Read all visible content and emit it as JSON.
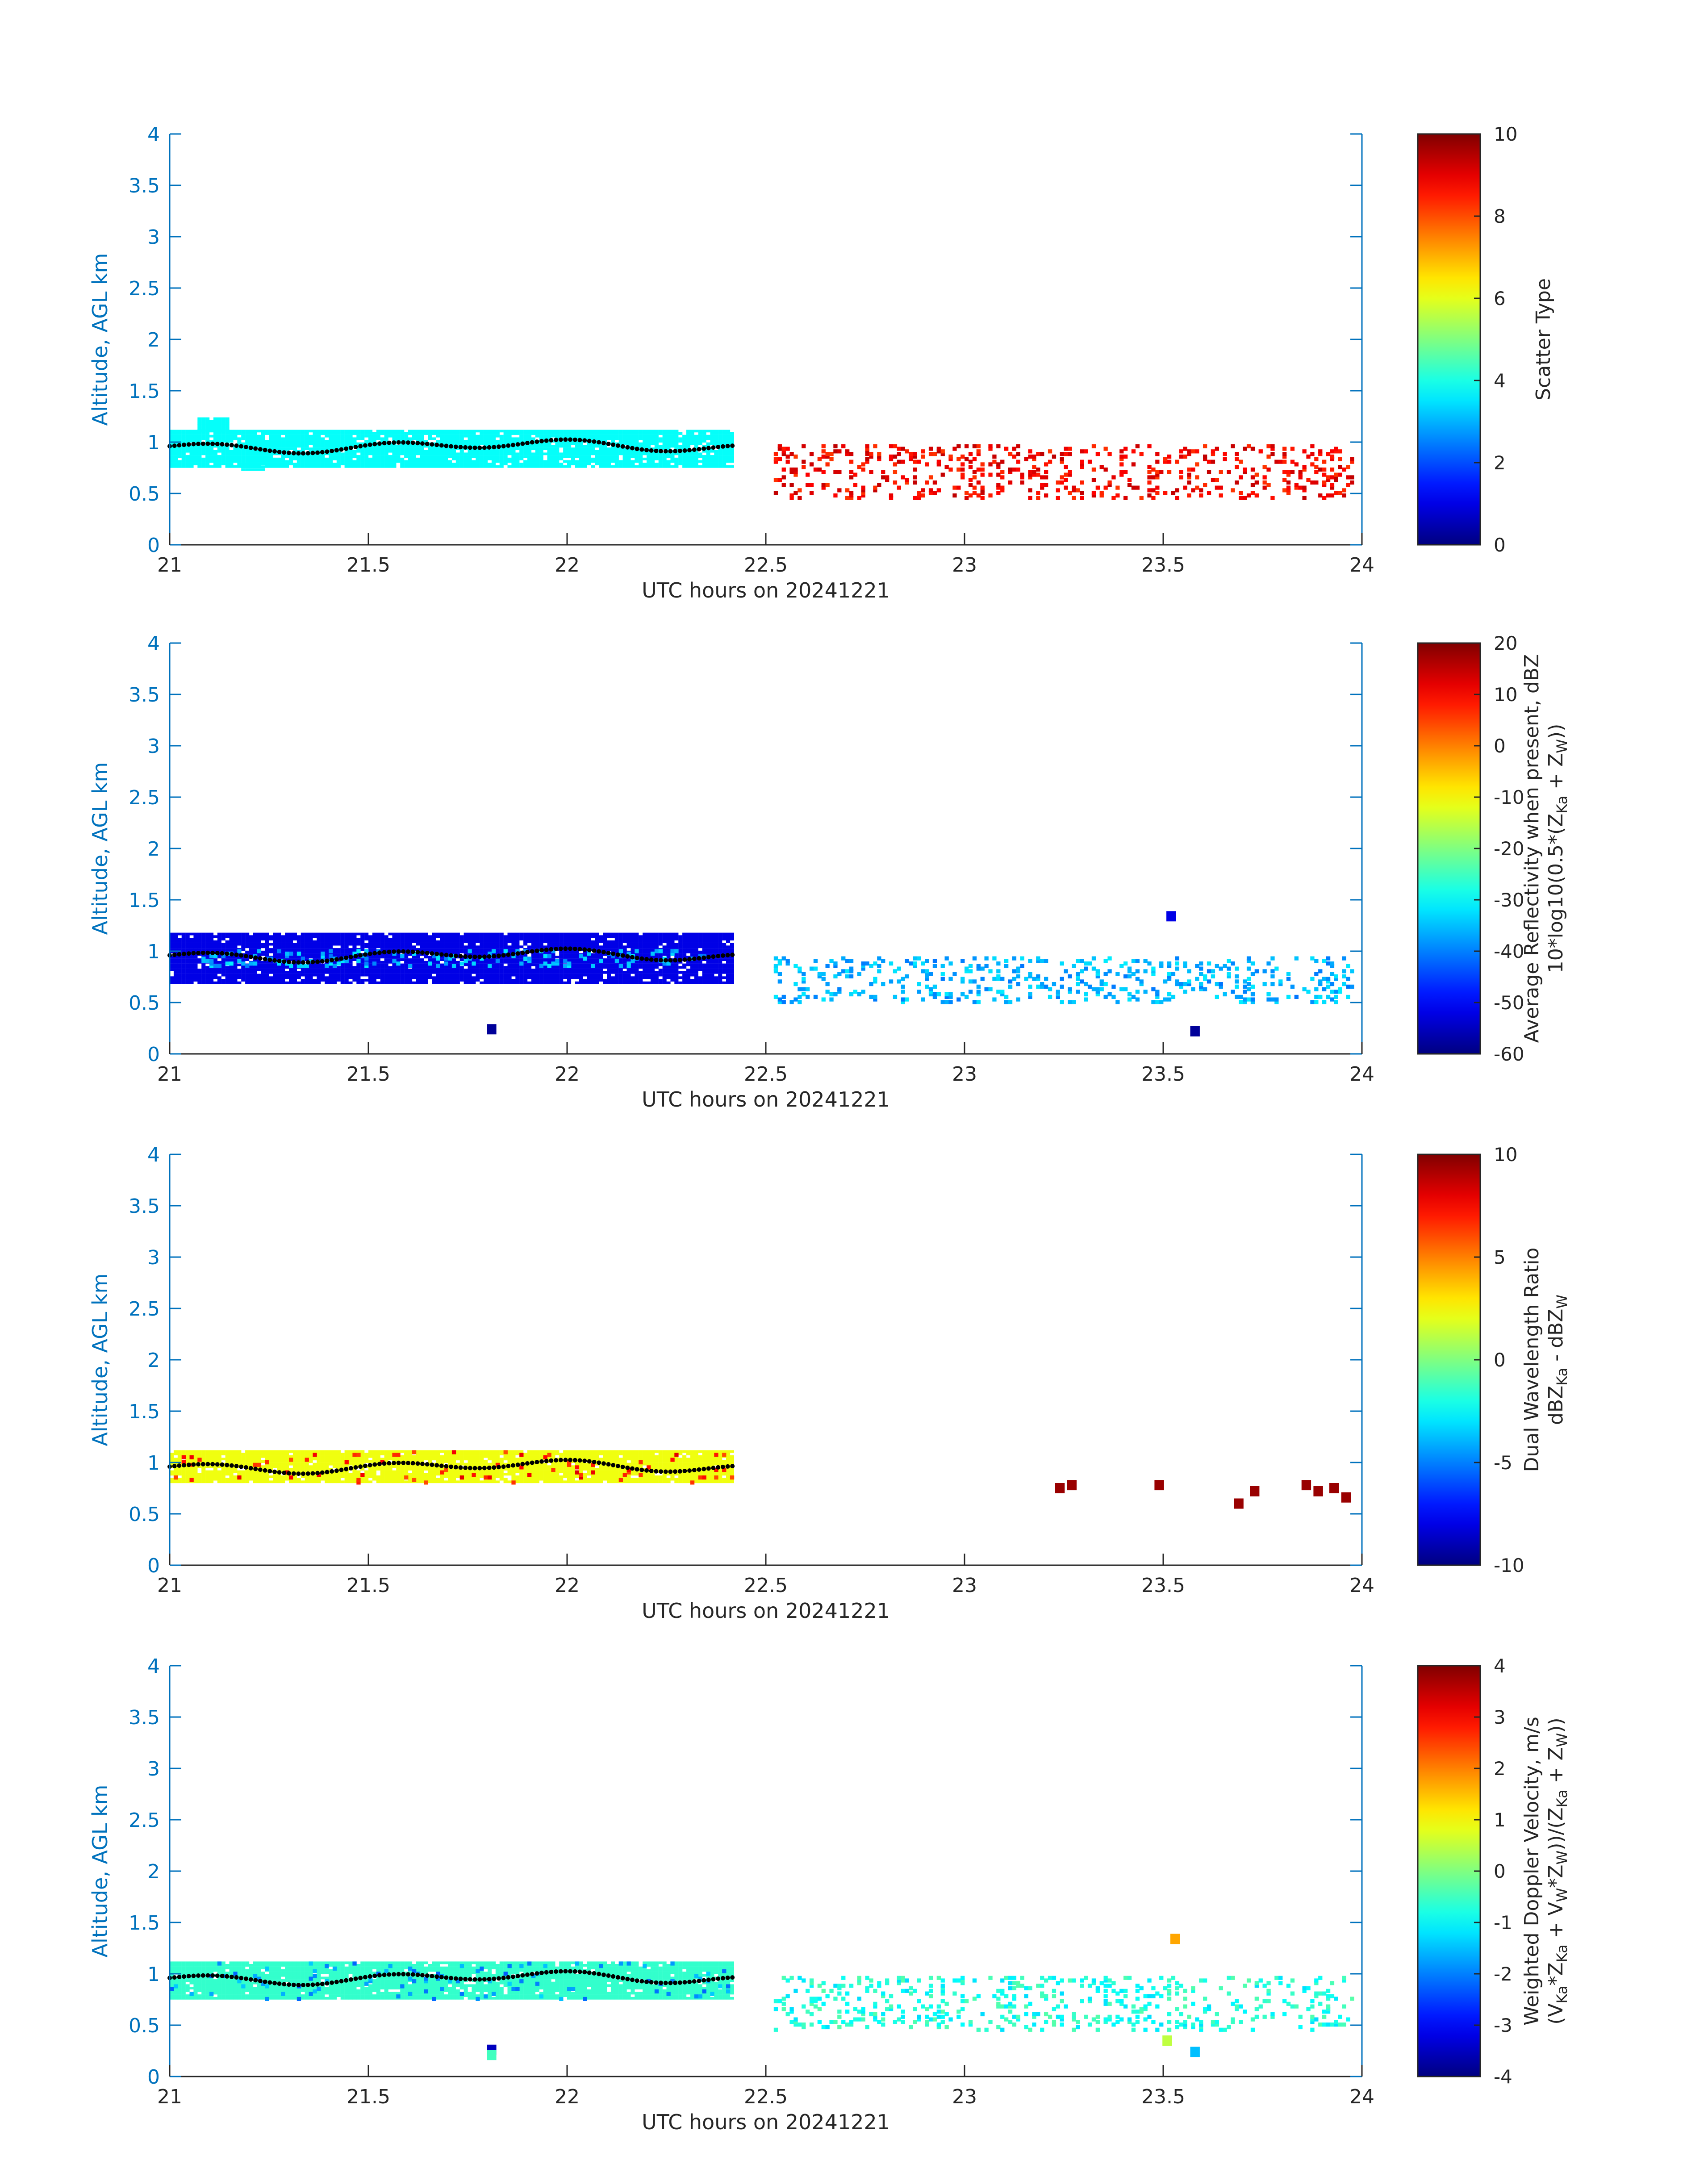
{
  "chart_data": [
    {
      "type": "heatmap",
      "xlabel": "UTC hours on 20241221",
      "ylabel": "Altitude, AGL km",
      "xlim": [
        21,
        24
      ],
      "ylim": [
        0,
        4
      ],
      "xticks": [
        "21",
        "21.5",
        "22",
        "22.5",
        "23",
        "23.5",
        "24"
      ],
      "yticks": [
        "0",
        "0.5",
        "1",
        "1.5",
        "2",
        "2.5",
        "3",
        "3.5",
        "4"
      ],
      "colorbar": {
        "label_lines": [
          "Scatter Type"
        ],
        "clim": [
          0,
          10
        ],
        "ticks": [
          "0",
          "2",
          "4",
          "6",
          "8",
          "10"
        ]
      },
      "colormap": "jet",
      "regions": [
        {
          "x0": 21.0,
          "x1": 22.42,
          "y0": 0.75,
          "y1": 1.12,
          "value": 3.8,
          "fill": "solid"
        },
        {
          "x0": 21.07,
          "x1": 21.15,
          "y0": 1.1,
          "y1": 1.24,
          "value": 3.8,
          "fill": "solid"
        },
        {
          "x0": 21.18,
          "x1": 21.24,
          "y0": 0.72,
          "y1": 0.8,
          "value": 3.8,
          "fill": "solid"
        },
        {
          "x0": 22.52,
          "x1": 23.98,
          "y0": 0.45,
          "y1": 0.98,
          "value": 8.8,
          "fill": "sparse"
        }
      ],
      "trace": {
        "x_range": [
          21.0,
          22.42
        ],
        "y_base": 0.96
      }
    },
    {
      "type": "heatmap",
      "xlabel": "UTC hours on 20241221",
      "ylabel": "Altitude, AGL km",
      "xlim": [
        21,
        24
      ],
      "ylim": [
        0,
        4
      ],
      "xticks": [
        "21",
        "21.5",
        "22",
        "22.5",
        "23",
        "23.5",
        "24"
      ],
      "yticks": [
        "0",
        "0.5",
        "1",
        "1.5",
        "2",
        "2.5",
        "3",
        "3.5",
        "4"
      ],
      "colorbar": {
        "label_lines": [
          "Average Reflectivity when present, dBZ",
          "10*log10(0.5*(Z",
          "Ka",
          " + Z",
          "W",
          "))"
        ],
        "clim": [
          -60,
          20
        ],
        "ticks": [
          "-60",
          "-50",
          "-40",
          "-30",
          "-20",
          "-10",
          "0",
          "10",
          "20"
        ]
      },
      "colormap": "jet",
      "regions": [
        {
          "x0": 21.0,
          "x1": 22.42,
          "y0": 0.68,
          "y1": 1.18,
          "value": -52,
          "fill": "solid"
        },
        {
          "x0": 21.05,
          "x1": 22.35,
          "y0": 0.85,
          "y1": 1.02,
          "value": -36,
          "fill": "sparse"
        },
        {
          "x0": 22.52,
          "x1": 23.98,
          "y0": 0.5,
          "y1": 0.95,
          "value": -36,
          "fill": "sparse"
        }
      ],
      "points": [
        {
          "x": 21.81,
          "y": 0.24,
          "value": -58
        },
        {
          "x": 23.52,
          "y": 1.34,
          "value": -52
        },
        {
          "x": 23.58,
          "y": 0.22,
          "value": -58
        }
      ],
      "trace": {
        "x_range": [
          21.0,
          22.42
        ],
        "y_base": 0.96
      }
    },
    {
      "type": "heatmap",
      "xlabel": "UTC hours on 20241221",
      "ylabel": "Altitude, AGL km",
      "xlim": [
        21,
        24
      ],
      "ylim": [
        0,
        4
      ],
      "xticks": [
        "21",
        "21.5",
        "22",
        "22.5",
        "23",
        "23.5",
        "24"
      ],
      "yticks": [
        "0",
        "0.5",
        "1",
        "1.5",
        "2",
        "2.5",
        "3",
        "3.5",
        "4"
      ],
      "colorbar": {
        "label_lines": [
          "Dual Wavelength Ratio",
          "dBZ",
          "Ka",
          " - dBZ",
          "W"
        ],
        "clim": [
          -10,
          10
        ],
        "ticks": [
          "-10",
          "-5",
          "0",
          "5",
          "10"
        ]
      },
      "colormap": "jet",
      "regions": [
        {
          "x0": 21.0,
          "x1": 22.42,
          "y0": 0.8,
          "y1": 1.12,
          "value": 2.2,
          "fill": "solid"
        },
        {
          "x0": 21.0,
          "x1": 22.42,
          "y0": 0.8,
          "y1": 1.12,
          "value": 7,
          "fill": "specks"
        }
      ],
      "points": [
        {
          "x": 23.24,
          "y": 0.75,
          "value": 9.5
        },
        {
          "x": 23.27,
          "y": 0.78,
          "value": 9.5
        },
        {
          "x": 23.49,
          "y": 0.78,
          "value": 9.5
        },
        {
          "x": 23.69,
          "y": 0.6,
          "value": 9.5
        },
        {
          "x": 23.73,
          "y": 0.72,
          "value": 9.5
        },
        {
          "x": 23.86,
          "y": 0.78,
          "value": 9.5
        },
        {
          "x": 23.89,
          "y": 0.72,
          "value": 9.5
        },
        {
          "x": 23.93,
          "y": 0.75,
          "value": 9.5
        },
        {
          "x": 23.96,
          "y": 0.66,
          "value": 9.5
        }
      ],
      "trace": {
        "x_range": [
          21.0,
          22.42
        ],
        "y_base": 0.96
      }
    },
    {
      "type": "heatmap",
      "xlabel": "UTC hours on 20241221",
      "ylabel": "Altitude, AGL km",
      "xlim": [
        21,
        24
      ],
      "ylim": [
        0,
        4
      ],
      "xticks": [
        "21",
        "21.5",
        "22",
        "22.5",
        "23",
        "23.5",
        "24"
      ],
      "yticks": [
        "0",
        "0.5",
        "1",
        "1.5",
        "2",
        "2.5",
        "3",
        "3.5",
        "4"
      ],
      "colorbar": {
        "label_lines": [
          "Weighted Doppler Velocity, m/s",
          "(V",
          "Ka",
          "*Z",
          "Ka",
          " + V",
          "W",
          "*Z",
          "W",
          "))/(Z",
          "Ka",
          " + Z",
          "W",
          "))"
        ],
        "clim": [
          -4,
          4
        ],
        "ticks": [
          "-4",
          "-3",
          "-2",
          "-1",
          "0",
          "1",
          "2",
          "3",
          "4"
        ]
      },
      "colormap": "jet",
      "regions": [
        {
          "x0": 21.0,
          "x1": 22.42,
          "y0": 0.75,
          "y1": 1.12,
          "value": -0.6,
          "fill": "solid"
        },
        {
          "x0": 21.0,
          "x1": 22.42,
          "y0": 0.75,
          "y1": 1.12,
          "value": -1.8,
          "fill": "specks"
        },
        {
          "x0": 22.52,
          "x1": 23.98,
          "y0": 0.45,
          "y1": 0.98,
          "value": -0.8,
          "fill": "sparse"
        }
      ],
      "points": [
        {
          "x": 21.81,
          "y": 0.26,
          "value": -3.5
        },
        {
          "x": 21.81,
          "y": 0.21,
          "value": -0.5
        },
        {
          "x": 23.53,
          "y": 1.34,
          "value": 1.7
        },
        {
          "x": 23.51,
          "y": 0.35,
          "value": 0.5
        },
        {
          "x": 23.58,
          "y": 0.24,
          "value": -1.5
        }
      ],
      "trace": {
        "x_range": [
          21.0,
          22.42
        ],
        "y_base": 0.96
      }
    }
  ]
}
